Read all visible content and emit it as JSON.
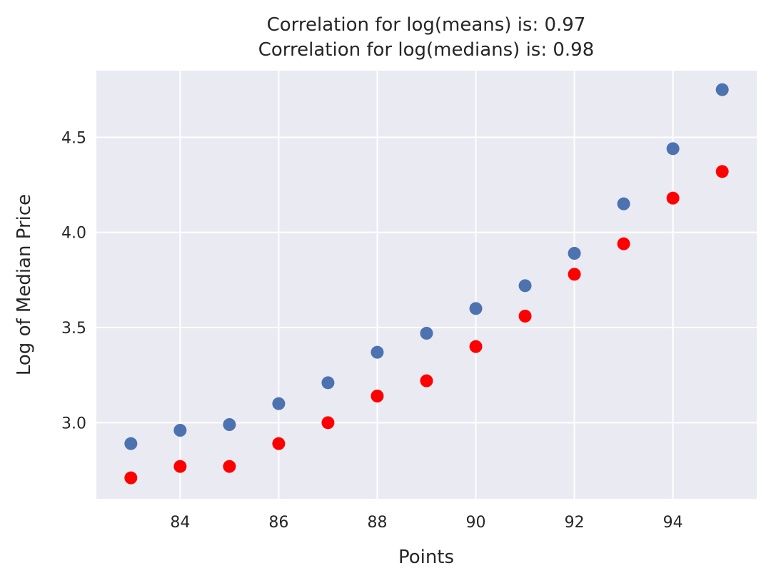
{
  "chart_data": {
    "type": "scatter",
    "title": "Correlation for log(means) is: 0.97",
    "subtitle": "Correlation for log(medians) is: 0.98",
    "xlabel": "Points",
    "ylabel": "Log of Median Price",
    "xlim": [
      82.3,
      95.7
    ],
    "ylim": [
      2.6,
      4.85
    ],
    "xticks": [
      84,
      86,
      88,
      90,
      92,
      94
    ],
    "yticks": [
      3.0,
      3.5,
      4.0,
      4.5
    ],
    "grid": true,
    "background_color": "#eaeaf2",
    "x": [
      83,
      84,
      85,
      86,
      87,
      88,
      89,
      90,
      91,
      92,
      93,
      94,
      95
    ],
    "series": [
      {
        "color": "#4c72b0",
        "values": [
          2.89,
          2.96,
          2.99,
          3.1,
          3.21,
          3.37,
          3.47,
          3.6,
          3.72,
          3.89,
          4.15,
          4.44,
          4.75
        ]
      },
      {
        "color": "#ff0000",
        "values": [
          2.71,
          2.77,
          2.77,
          2.89,
          3.0,
          3.14,
          3.22,
          3.4,
          3.56,
          3.78,
          3.94,
          4.18,
          4.32
        ]
      }
    ]
  }
}
